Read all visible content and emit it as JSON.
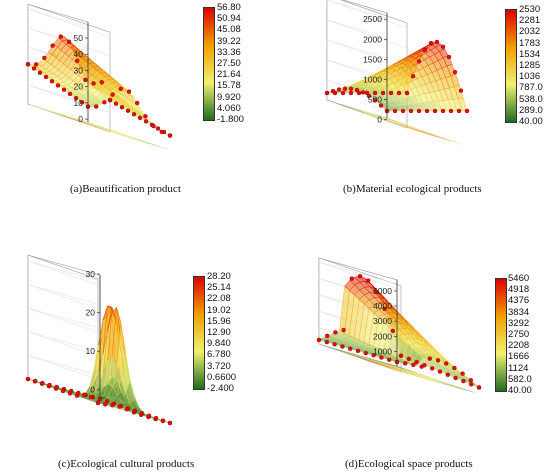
{
  "chart_data": [
    {
      "type": "surface3d",
      "caption": "(a)Beautification product",
      "z_ticks": [
        "0",
        "10",
        "20",
        "30",
        "40",
        "50"
      ],
      "z_range": [
        -1.8,
        56.8
      ],
      "colorbar_ticks": [
        "56.80",
        "50.94",
        "45.08",
        "39.22",
        "33.36",
        "27.50",
        "21.64",
        "15.78",
        "9.920",
        "4.060",
        "-1.800"
      ],
      "colorbar_range": [
        -1.8,
        56.8
      ],
      "colormap": [
        "#e00000",
        "#f0a000",
        "#f0f070",
        "#1e6b1e"
      ]
    },
    {
      "type": "surface3d",
      "caption": "(b)Material ecological products",
      "z_ticks": [
        "0",
        "500",
        "1000",
        "1500",
        "2000",
        "2500"
      ],
      "z_range": [
        40,
        2530
      ],
      "colorbar_ticks": [
        "2530",
        "2281",
        "2032",
        "1783",
        "1534",
        "1285",
        "1036",
        "787.0",
        "538.0",
        "289.0",
        "40.00"
      ],
      "colorbar_range": [
        40,
        2530
      ],
      "colormap": [
        "#e00000",
        "#f0a000",
        "#f0f070",
        "#1e6b1e"
      ]
    },
    {
      "type": "surface3d",
      "caption": "(c)Ecological cultural products",
      "z_ticks": [
        "0",
        "10",
        "20",
        "30"
      ],
      "z_range": [
        -2.4,
        28.2
      ],
      "colorbar_ticks": [
        "28.20",
        "25.14",
        "22.08",
        "19.02",
        "15.96",
        "12.90",
        "9.840",
        "6.780",
        "3.720",
        "0.6600",
        "-2.400"
      ],
      "colorbar_range": [
        -2.4,
        28.2
      ],
      "colormap": [
        "#e00000",
        "#f0a000",
        "#f0f070",
        "#1e6b1e"
      ]
    },
    {
      "type": "surface3d",
      "caption": "(d)Ecological space products",
      "z_ticks": [
        "1000",
        "2000",
        "3000",
        "4000",
        "5000"
      ],
      "z_range": [
        40,
        5460
      ],
      "colorbar_ticks": [
        "5460",
        "4918",
        "4376",
        "3834",
        "3292",
        "2750",
        "2208",
        "1666",
        "1124",
        "582.0",
        "40.00"
      ],
      "colorbar_range": [
        40,
        5460
      ],
      "colormap": [
        "#e00000",
        "#f0a000",
        "#f0f070",
        "#1e6b1e"
      ]
    }
  ]
}
